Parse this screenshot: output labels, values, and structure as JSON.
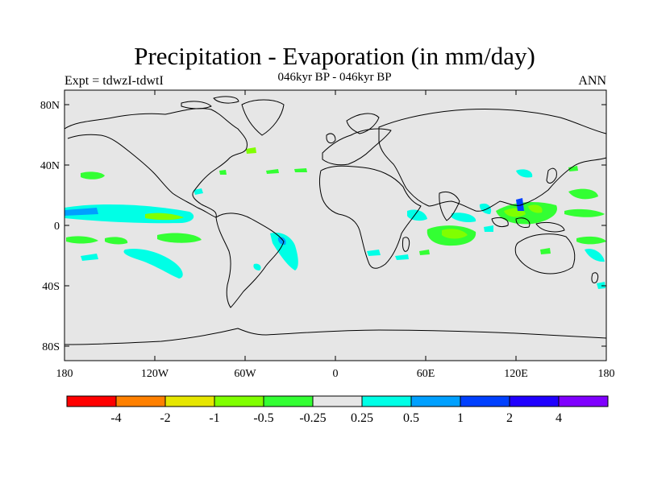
{
  "title": "Precipitation - Evaporation (in mm/day)",
  "subtitle": "046kyr BP - 046kyr BP",
  "left_label": "Expt = tdwzI-tdwtI",
  "right_label": "ANN",
  "lat_ticks": [
    "80N",
    "40N",
    "0",
    "40S",
    "80S"
  ],
  "lon_ticks": [
    "180",
    "120W",
    "60W",
    "0",
    "60E",
    "120E",
    "180"
  ],
  "colorbar": {
    "colors": [
      "#ff0000",
      "#ff8000",
      "#e6e600",
      "#80ff00",
      "#33ff33",
      "#e6e6e6",
      "#00ffe6",
      "#00a0ff",
      "#0040ff",
      "#2000ff",
      "#8000ff"
    ],
    "labels": [
      "-4",
      "-2",
      "-1",
      "-0.5",
      "-0.25",
      "0.25",
      "0.5",
      "1",
      "2",
      "4"
    ]
  },
  "map_colors": {
    "background": "#e6e6e6",
    "coast": "#000000"
  }
}
